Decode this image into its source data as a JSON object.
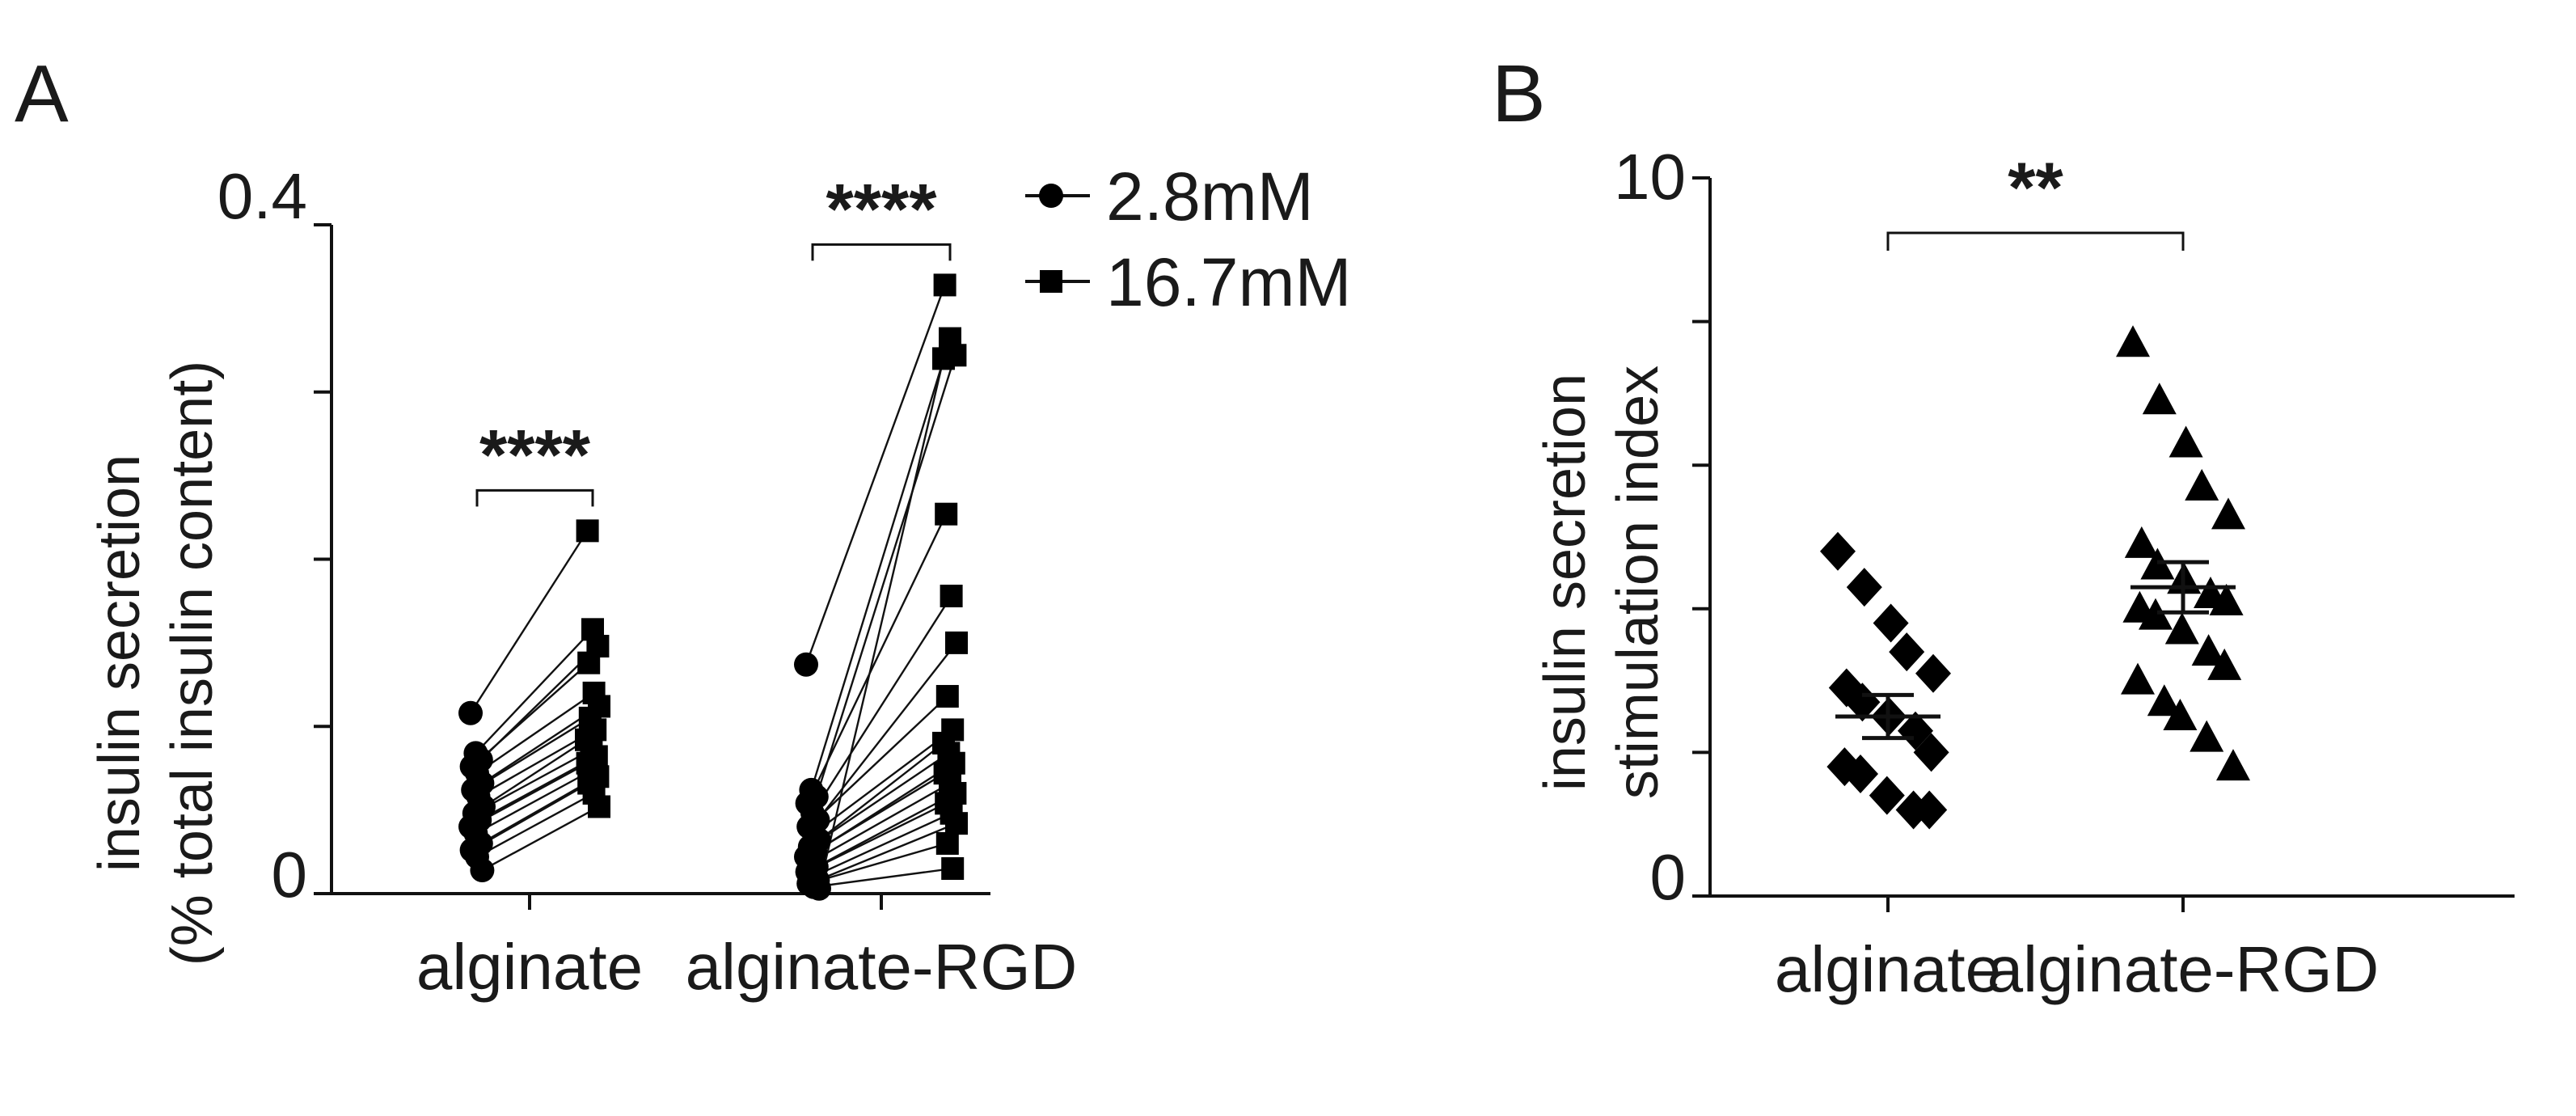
{
  "panels": {
    "A": {
      "letter": "A",
      "ylabel_line1": "insulin secretion",
      "ylabel_line2": "(% total insulin content)",
      "legend": [
        {
          "label": "2.8mM",
          "marker": "circle"
        },
        {
          "label": "16.7mM",
          "marker": "square"
        }
      ]
    },
    "B": {
      "letter": "B",
      "ylabel_line1": "insulin secretion",
      "ylabel_line2": "stimulation index"
    }
  },
  "chart_data": [
    {
      "panel": "A",
      "type": "scatter",
      "subtype": "paired before-after",
      "title": "",
      "ylabel": "insulin secretion (% total insulin content)",
      "xlabel": "",
      "ylim": [
        0,
        0.4
      ],
      "yticks": [
        0,
        0.1,
        0.2,
        0.3,
        0.4
      ],
      "ytick_labels": [
        "0",
        "",
        "",
        "",
        "0.4"
      ],
      "categories": [
        "alginate",
        "alginate-RGD"
      ],
      "legend_position": "top-right",
      "series": [
        {
          "name": "2.8mM",
          "marker": "circle",
          "alginate": [
            0.108,
            0.084,
            0.08,
            0.076,
            0.072,
            0.066,
            0.062,
            0.058,
            0.052,
            0.048,
            0.044,
            0.04,
            0.036,
            0.03,
            0.026,
            0.022,
            0.014
          ],
          "alginate-RGD": [
            0.137,
            0.062,
            0.058,
            0.054,
            0.048,
            0.044,
            0.04,
            0.036,
            0.032,
            0.028,
            0.025,
            0.022,
            0.019,
            0.016,
            0.013,
            0.01,
            0.008,
            0.006,
            0.004,
            0.003
          ]
        },
        {
          "name": "16.7mM",
          "marker": "square",
          "alginate": [
            0.217,
            0.158,
            0.148,
            0.138,
            0.12,
            0.112,
            0.105,
            0.098,
            0.092,
            0.086,
            0.082,
            0.078,
            0.074,
            0.07,
            0.066,
            0.06,
            0.052
          ],
          "alginate-RGD": [
            0.364,
            0.332,
            0.322,
            0.227,
            0.178,
            0.15,
            0.118,
            0.098,
            0.09,
            0.084,
            0.078,
            0.072,
            0.066,
            0.06,
            0.054,
            0.048,
            0.042,
            0.03,
            0.015,
            0.32
          ]
        }
      ],
      "annotations": [
        {
          "text": "****",
          "between": "alginate"
        },
        {
          "text": "****",
          "between": "alginate-RGD"
        }
      ]
    },
    {
      "panel": "B",
      "type": "scatter",
      "subtype": "dot plot with mean ± SEM",
      "title": "",
      "ylabel": "insulin secretion stimulation index",
      "xlabel": "",
      "ylim": [
        0,
        10
      ],
      "yticks": [
        0,
        2,
        4,
        6,
        8,
        10
      ],
      "ytick_labels": [
        "0",
        "",
        "",
        "",
        "",
        "10"
      ],
      "categories": [
        "alginate",
        "alginate-RGD"
      ],
      "series": [
        {
          "name": "",
          "category": "alginate",
          "marker": "diamond",
          "values": [
            4.8,
            4.3,
            3.8,
            3.4,
            3.1,
            2.9,
            2.7,
            2.5,
            2.3,
            2.0,
            1.8,
            1.7,
            1.4,
            1.2,
            1.2
          ],
          "mean": 2.5,
          "sem": 0.3
        },
        {
          "name": "",
          "category": "alginate-RGD",
          "marker": "triangle",
          "values": [
            7.7,
            6.9,
            6.3,
            5.7,
            5.3,
            4.9,
            4.6,
            4.4,
            4.2,
            4.1,
            4.0,
            3.9,
            3.7,
            3.4,
            3.2,
            3.0,
            2.7,
            2.5,
            2.2,
            1.8
          ],
          "mean": 4.3,
          "sem": 0.35
        }
      ],
      "annotations": [
        {
          "text": "**",
          "between": [
            "alginate",
            "alginate-RGD"
          ]
        }
      ]
    }
  ]
}
